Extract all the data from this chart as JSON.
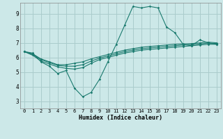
{
  "xlabel": "Humidex (Indice chaleur)",
  "background_color": "#cce8e8",
  "grid_color": "#aacccc",
  "line_color": "#1a7a6e",
  "xlim": [
    -0.5,
    23.5
  ],
  "ylim": [
    2.5,
    9.75
  ],
  "xticks": [
    0,
    1,
    2,
    3,
    4,
    5,
    6,
    7,
    8,
    9,
    10,
    11,
    12,
    13,
    14,
    15,
    16,
    17,
    18,
    19,
    20,
    21,
    22,
    23
  ],
  "yticks": [
    3,
    4,
    5,
    6,
    7,
    8,
    9
  ],
  "series": [
    [
      6.4,
      6.3,
      5.7,
      5.4,
      4.9,
      5.1,
      3.9,
      3.3,
      3.6,
      4.5,
      5.7,
      6.9,
      8.2,
      9.5,
      9.4,
      9.5,
      9.4,
      8.1,
      7.7,
      6.9,
      6.8,
      7.2,
      7.0,
      6.9
    ],
    [
      6.4,
      6.25,
      5.9,
      5.7,
      5.5,
      5.5,
      5.6,
      5.7,
      5.9,
      6.05,
      6.2,
      6.35,
      6.5,
      6.6,
      6.7,
      6.75,
      6.8,
      6.85,
      6.9,
      6.92,
      6.95,
      7.0,
      7.05,
      7.0
    ],
    [
      6.4,
      6.2,
      5.85,
      5.65,
      5.45,
      5.4,
      5.4,
      5.5,
      5.75,
      5.95,
      6.1,
      6.25,
      6.4,
      6.5,
      6.6,
      6.65,
      6.7,
      6.75,
      6.8,
      6.85,
      6.88,
      6.92,
      6.98,
      6.95
    ],
    [
      6.4,
      6.15,
      5.75,
      5.55,
      5.35,
      5.25,
      5.2,
      5.3,
      5.6,
      5.85,
      6.0,
      6.15,
      6.3,
      6.4,
      6.5,
      6.55,
      6.6,
      6.65,
      6.7,
      6.75,
      6.8,
      6.85,
      6.9,
      6.9
    ]
  ]
}
